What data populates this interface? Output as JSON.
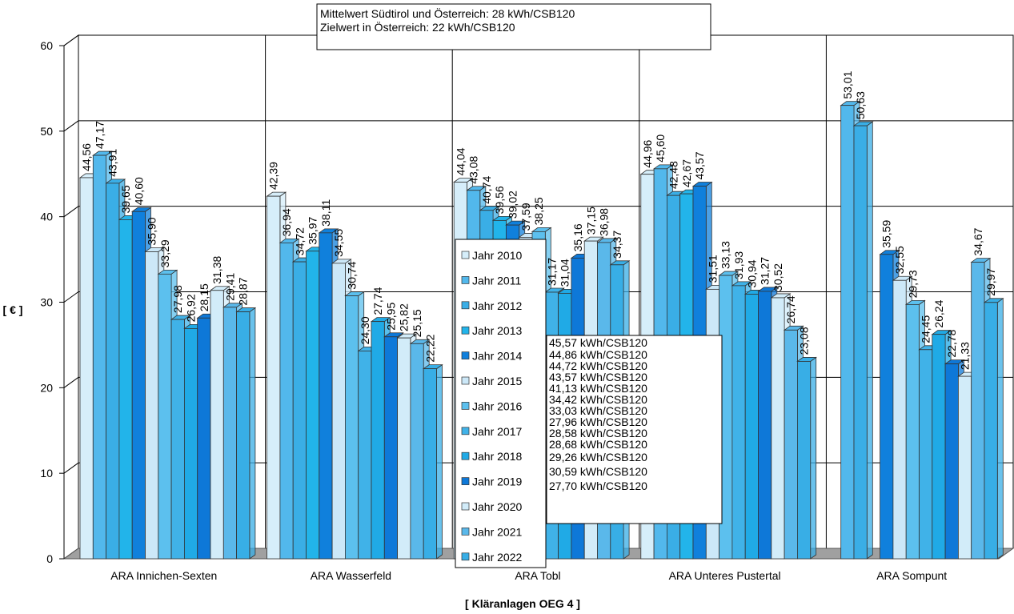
{
  "chart_data": {
    "type": "bar",
    "ylabel": "[ € ]",
    "xlabel": "[ Kläranlagen OEG 4 ]",
    "ylim": [
      0,
      60
    ],
    "yticks": [
      "0",
      "10",
      "20",
      "30",
      "40",
      "50",
      "60"
    ],
    "grid": true,
    "info_box": [
      "Mittelwert Südtirol und Österreich: 28 kWh/CSB120",
      "Zielwert in Österreich: 22 kWh/CSB120"
    ],
    "categories": [
      "ARA Innichen-Sexten",
      "ARA Wasserfeld",
      "ARA Tobl",
      "ARA Unteres Pustertal",
      "ARA Sompunt"
    ],
    "series": [
      {
        "name": "Jahr 2010",
        "color": "#d6eefa",
        "values": [
          44.56,
          42.39,
          44.04,
          44.96,
          null
        ],
        "labels": [
          "44,56",
          "42,39",
          "44,04",
          "44,96",
          ""
        ]
      },
      {
        "name": "Jahr 2011",
        "color": "#52b8ec",
        "values": [
          47.17,
          36.94,
          43.08,
          45.6,
          53.01
        ],
        "labels": [
          "47,17",
          "36,94",
          "43,08",
          "45,60",
          "53,01"
        ]
      },
      {
        "name": "Jahr 2012",
        "color": "#3aaee6",
        "values": [
          43.91,
          34.72,
          40.74,
          42.48,
          50.63
        ],
        "labels": [
          "43,91",
          "34,72",
          "40,74",
          "42,48",
          "50,63"
        ]
      },
      {
        "name": "Jahr 2013",
        "color": "#22b4ea",
        "values": [
          39.65,
          35.97,
          39.56,
          42.67,
          null
        ],
        "labels": [
          "39,65",
          "35,97",
          "39,56",
          "42,67",
          ""
        ]
      },
      {
        "name": "Jahr 2014",
        "color": "#1080dc",
        "values": [
          40.6,
          38.11,
          39.02,
          43.57,
          35.59
        ],
        "labels": [
          "40,60",
          "38,11",
          "39,02",
          "43,57",
          "35,59"
        ]
      },
      {
        "name": "Jahr 2015",
        "color": "#cce8f8",
        "values": [
          35.9,
          34.55,
          37.59,
          31.51,
          32.55
        ],
        "labels": [
          "35,90",
          "34,55",
          "37,59",
          "31,51",
          "32,55"
        ]
      },
      {
        "name": "Jahr 2016",
        "color": "#5cc0ee",
        "values": [
          33.29,
          30.74,
          38.25,
          33.13,
          29.73
        ],
        "labels": [
          "33,29",
          "30,74",
          "38,25",
          "33,13",
          "29,73"
        ]
      },
      {
        "name": "Jahr 2017",
        "color": "#40b2e8",
        "values": [
          27.98,
          24.3,
          31.17,
          31.93,
          24.45
        ],
        "labels": [
          "27,98",
          "24,30",
          "31,17",
          "31,93",
          "24,45"
        ]
      },
      {
        "name": "Jahr 2018",
        "color": "#20aae6",
        "values": [
          26.92,
          27.74,
          31.04,
          30.94,
          26.24
        ],
        "labels": [
          "26,92",
          "27,74",
          "31,04",
          "30,94",
          "26,24"
        ]
      },
      {
        "name": "Jahr 2019",
        "color": "#0e78d8",
        "values": [
          28.15,
          25.95,
          35.16,
          31.27,
          22.78
        ],
        "labels": [
          "28,15",
          "25,95",
          "35,16",
          "31,27",
          "22,78"
        ]
      },
      {
        "name": "Jahr 2020",
        "color": "#d2ecf9",
        "values": [
          31.38,
          25.82,
          37.15,
          30.52,
          21.33
        ],
        "labels": [
          "31,38",
          "25,82",
          "37,15",
          "30,52",
          "21,33"
        ]
      },
      {
        "name": "Jahr 2021",
        "color": "#5ab8ea",
        "values": [
          29.41,
          25.15,
          36.98,
          26.74,
          34.67
        ],
        "labels": [
          "29,41",
          "25,15",
          "36,98",
          "26,74",
          "34,67"
        ]
      },
      {
        "name": "Jahr 2022",
        "color": "#38aee6",
        "values": [
          28.87,
          22.22,
          34.37,
          23.08,
          29.97
        ],
        "labels": [
          "28,87",
          "22,22",
          "34,37",
          "23,08",
          "29,97"
        ]
      }
    ],
    "kwh_box": [
      "45,57 kWh/CSB120",
      "44,86 kWh/CSB120",
      "44,72 kWh/CSB120",
      "43,57 kWh/CSB120",
      "41,13 kWh/CSB120",
      "34,42 kWh/CSB120",
      "33,03 kWh/CSB120",
      "27,96 kWh/CSB120",
      "28,58 kWh/CSB120",
      "28,68 kWh/CSB120",
      "29,26 kWh/CSB120",
      "30,59 kWh/CSB120",
      "27,70 kWh/CSB120"
    ]
  }
}
